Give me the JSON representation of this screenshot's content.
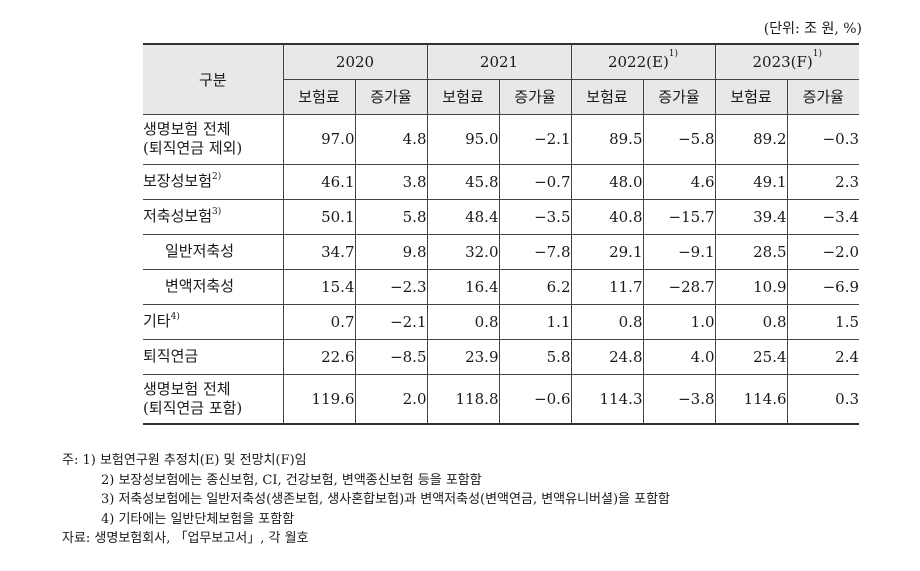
{
  "unit_label": "(단위: 조 원, %)",
  "table": {
    "corner_label": "구분",
    "years": [
      {
        "label": "2020",
        "sup": ""
      },
      {
        "label": "2021",
        "sup": ""
      },
      {
        "label": "2022(E)",
        "sup": "1)"
      },
      {
        "label": "2023(F)",
        "sup": "1)"
      }
    ],
    "sub_headers": [
      "보험료",
      "증가율",
      "보험료",
      "증가율",
      "보험료",
      "증가율",
      "보험료",
      "증가율"
    ],
    "rows": [
      {
        "label_lines": [
          "생명보험 전체",
          "(퇴직연금 제외)"
        ],
        "sup": "",
        "indent": false,
        "values": [
          "97.0",
          "4.8",
          "95.0",
          "−2.1",
          "89.5",
          "−5.8",
          "89.2",
          "−0.3"
        ]
      },
      {
        "label_lines": [
          "보장성보험"
        ],
        "sup": "2)",
        "indent": false,
        "values": [
          "46.1",
          "3.8",
          "45.8",
          "−0.7",
          "48.0",
          "4.6",
          "49.1",
          "2.3"
        ]
      },
      {
        "label_lines": [
          "저축성보험"
        ],
        "sup": "3)",
        "indent": false,
        "values": [
          "50.1",
          "5.8",
          "48.4",
          "−3.5",
          "40.8",
          "−15.7",
          "39.4",
          "−3.4"
        ]
      },
      {
        "label_lines": [
          "일반저축성"
        ],
        "sup": "",
        "indent": true,
        "values": [
          "34.7",
          "9.8",
          "32.0",
          "−7.8",
          "29.1",
          "−9.1",
          "28.5",
          "−2.0"
        ]
      },
      {
        "label_lines": [
          "변액저축성"
        ],
        "sup": "",
        "indent": true,
        "values": [
          "15.4",
          "−2.3",
          "16.4",
          "6.2",
          "11.7",
          "−28.7",
          "10.9",
          "−6.9"
        ]
      },
      {
        "label_lines": [
          "기타"
        ],
        "sup": "4)",
        "indent": false,
        "values": [
          "0.7",
          "−2.1",
          "0.8",
          "1.1",
          "0.8",
          "1.0",
          "0.8",
          "1.5"
        ]
      },
      {
        "label_lines": [
          "퇴직연금"
        ],
        "sup": "",
        "indent": false,
        "values": [
          "22.6",
          "−8.5",
          "23.9",
          "5.8",
          "24.8",
          "4.0",
          "25.4",
          "2.4"
        ]
      },
      {
        "label_lines": [
          "생명보험 전체",
          "(퇴직연금 포함)"
        ],
        "sup": "",
        "indent": false,
        "values": [
          "119.6",
          "2.0",
          "118.8",
          "−0.6",
          "114.3",
          "−3.8",
          "114.6",
          "0.3"
        ]
      }
    ]
  },
  "notes": [
    "주: 1) 보험연구원 추정치(E) 및 전망치(F)임",
    "2) 보장성보험에는 종신보험, CI, 건강보험, 변액종신보험 등을 포함함",
    "3) 저축성보험에는 일반저축성(생존보험, 생사혼합보험)과 변액저축성(변액연금, 변액유니버셜)을 포함함",
    "4) 기타에는 일반단체보험을 포함함"
  ],
  "source": "자료: 생명보험회사, 「업무보고서」, 각 월호"
}
